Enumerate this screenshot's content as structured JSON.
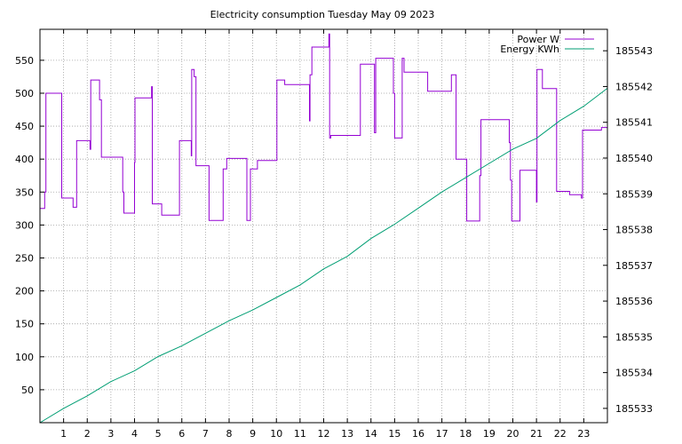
{
  "chart_data": {
    "type": "line",
    "title": "Electricity consumption Tuesday May 09 2023",
    "grid": true,
    "legend_position": "top-right",
    "x_axis": {
      "min": 0,
      "max": 24,
      "ticks": [
        1,
        2,
        3,
        4,
        5,
        6,
        7,
        8,
        9,
        10,
        11,
        12,
        13,
        14,
        15,
        16,
        17,
        18,
        19,
        20,
        21,
        22,
        23
      ]
    },
    "y_left": {
      "min": 0,
      "max": 597,
      "ticks": [
        50,
        100,
        150,
        200,
        250,
        300,
        350,
        400,
        450,
        500,
        550
      ]
    },
    "y_right": {
      "min": 185532.6,
      "max": 185543.6,
      "ticks": [
        185533,
        185534,
        185535,
        185536,
        185537,
        185538,
        185539,
        185540,
        185541,
        185542,
        185543
      ]
    },
    "series": [
      {
        "name": "Power W",
        "axis": "left",
        "color": "#9400d3",
        "step": true,
        "points": [
          [
            0,
            325
          ],
          [
            0.2,
            350
          ],
          [
            0.25,
            500
          ],
          [
            0.9,
            500
          ],
          [
            0.92,
            341
          ],
          [
            1.35,
            341
          ],
          [
            1.4,
            327
          ],
          [
            1.5,
            327
          ],
          [
            1.55,
            428
          ],
          [
            2.1,
            428
          ],
          [
            2.12,
            415
          ],
          [
            2.15,
            520
          ],
          [
            2.5,
            520
          ],
          [
            2.52,
            490
          ],
          [
            2.6,
            403
          ],
          [
            3.45,
            403
          ],
          [
            3.5,
            350
          ],
          [
            3.55,
            318
          ],
          [
            3.95,
            318
          ],
          [
            4.0,
            395
          ],
          [
            4.02,
            493
          ],
          [
            4.7,
            493
          ],
          [
            4.72,
            510
          ],
          [
            4.75,
            332
          ],
          [
            5.1,
            332
          ],
          [
            5.15,
            315
          ],
          [
            5.85,
            315
          ],
          [
            5.9,
            428
          ],
          [
            6.35,
            428
          ],
          [
            6.4,
            405
          ],
          [
            6.42,
            536
          ],
          [
            6.5,
            536
          ],
          [
            6.52,
            525
          ],
          [
            6.6,
            390
          ],
          [
            7.1,
            390
          ],
          [
            7.15,
            307
          ],
          [
            7.7,
            307
          ],
          [
            7.75,
            385
          ],
          [
            7.85,
            385
          ],
          [
            7.9,
            401
          ],
          [
            8.7,
            401
          ],
          [
            8.75,
            307
          ],
          [
            8.85,
            307
          ],
          [
            8.9,
            385
          ],
          [
            9.15,
            385
          ],
          [
            9.2,
            398
          ],
          [
            10.0,
            398
          ],
          [
            10.02,
            520
          ],
          [
            10.3,
            520
          ],
          [
            10.35,
            513
          ],
          [
            11.35,
            513
          ],
          [
            11.4,
            458
          ],
          [
            11.42,
            528
          ],
          [
            11.5,
            570
          ],
          [
            12.2,
            570
          ],
          [
            12.22,
            590
          ],
          [
            12.25,
            432
          ],
          [
            12.3,
            436
          ],
          [
            13.5,
            436
          ],
          [
            13.55,
            544
          ],
          [
            14.1,
            544
          ],
          [
            14.15,
            440
          ],
          [
            14.2,
            553
          ],
          [
            14.9,
            553
          ],
          [
            14.95,
            500
          ],
          [
            15.0,
            432
          ],
          [
            15.3,
            432
          ],
          [
            15.32,
            553
          ],
          [
            15.4,
            532
          ],
          [
            16.35,
            532
          ],
          [
            16.4,
            503
          ],
          [
            17.35,
            503
          ],
          [
            17.4,
            528
          ],
          [
            17.55,
            528
          ],
          [
            17.6,
            400
          ],
          [
            18.0,
            400
          ],
          [
            18.05,
            306
          ],
          [
            18.55,
            306
          ],
          [
            18.6,
            375
          ],
          [
            18.65,
            460
          ],
          [
            19.8,
            460
          ],
          [
            19.85,
            425
          ],
          [
            19.9,
            368
          ],
          [
            19.95,
            306
          ],
          [
            20.25,
            306
          ],
          [
            20.3,
            383
          ],
          [
            20.95,
            383
          ],
          [
            21.0,
            335
          ],
          [
            21.02,
            536
          ],
          [
            21.2,
            536
          ],
          [
            21.25,
            507
          ],
          [
            21.8,
            507
          ],
          [
            21.85,
            351
          ],
          [
            22.35,
            351
          ],
          [
            22.4,
            346
          ],
          [
            22.85,
            346
          ],
          [
            22.9,
            341
          ],
          [
            22.95,
            444
          ],
          [
            23.7,
            444
          ],
          [
            23.75,
            448
          ],
          [
            24,
            448
          ]
        ]
      },
      {
        "name": "Energy KWh",
        "axis": "right",
        "color": "#009e73",
        "step": false,
        "points": [
          [
            0,
            185532.6
          ],
          [
            1,
            185533.0
          ],
          [
            2,
            185533.35
          ],
          [
            3,
            185533.75
          ],
          [
            4,
            185534.05
          ],
          [
            5,
            185534.45
          ],
          [
            6,
            185534.75
          ],
          [
            7,
            185535.1
          ],
          [
            8,
            185535.45
          ],
          [
            9,
            185535.75
          ],
          [
            10,
            185536.1
          ],
          [
            11,
            185536.45
          ],
          [
            12,
            185536.9
          ],
          [
            13,
            185537.25
          ],
          [
            14,
            185537.75
          ],
          [
            15,
            185538.15
          ],
          [
            16,
            185538.6
          ],
          [
            17,
            185539.05
          ],
          [
            18,
            185539.45
          ],
          [
            19,
            185539.85
          ],
          [
            20,
            185540.25
          ],
          [
            21,
            185540.55
          ],
          [
            22,
            185541.05
          ],
          [
            23,
            185541.45
          ],
          [
            24,
            185541.95
          ]
        ]
      }
    ]
  }
}
